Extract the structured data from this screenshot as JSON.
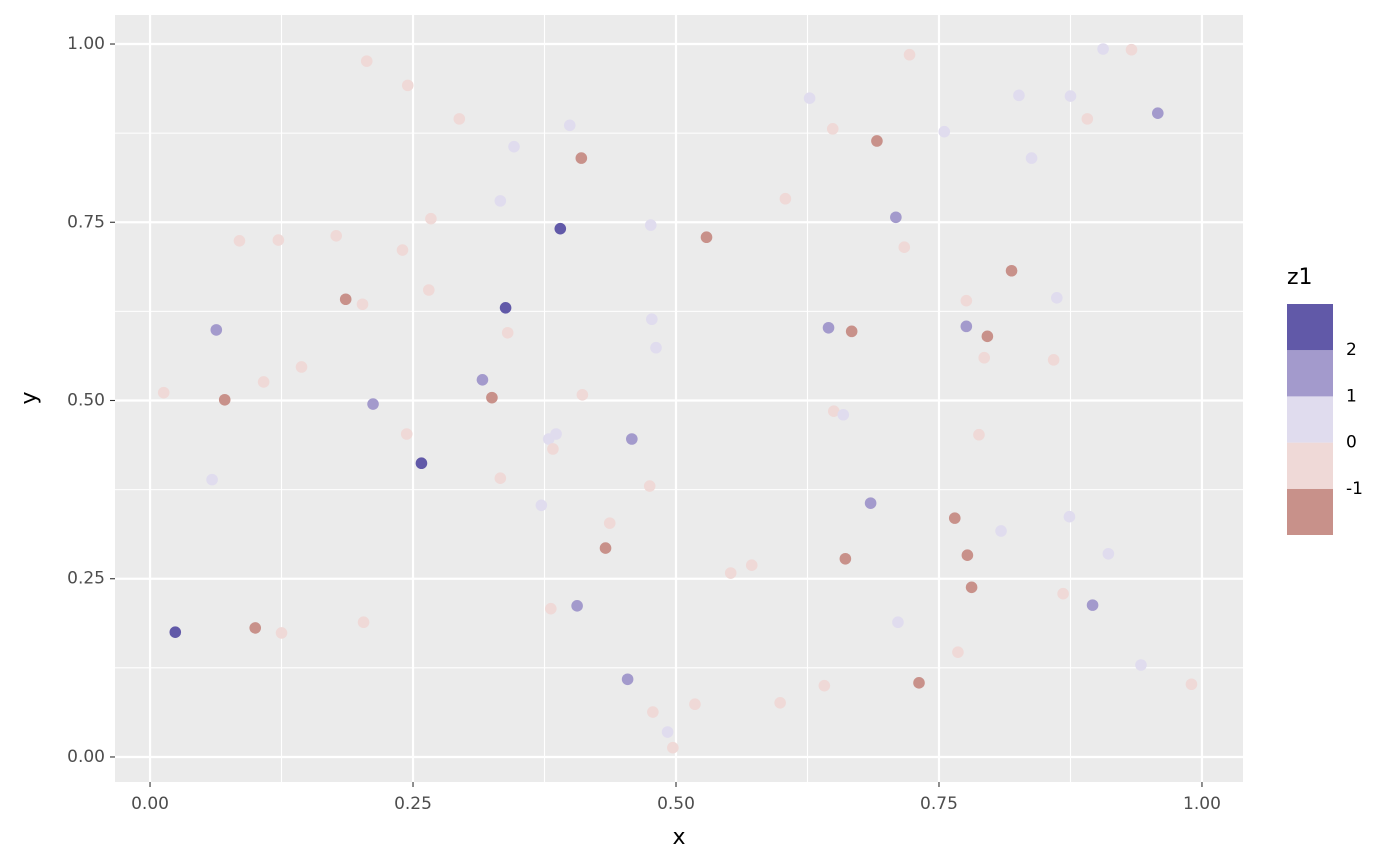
{
  "chart_data": {
    "type": "scatter",
    "x_label": "x",
    "y_label": "y",
    "legend_title": "z1",
    "x": [
      0.024,
      0.013,
      0.059,
      0.063,
      0.071,
      0.085,
      0.1,
      0.108,
      0.122,
      0.125,
      0.144,
      0.177,
      0.186,
      0.202,
      0.203,
      0.206,
      0.212,
      0.24,
      0.244,
      0.245,
      0.258,
      0.265,
      0.267,
      0.294,
      0.316,
      0.325,
      0.333,
      0.333,
      0.338,
      0.34,
      0.346,
      0.372,
      0.379,
      0.381,
      0.383,
      0.386,
      0.39,
      0.399,
      0.406,
      0.41,
      0.411,
      0.433,
      0.437,
      0.454,
      0.458,
      0.475,
      0.476,
      0.477,
      0.478,
      0.481,
      0.492,
      0.497,
      0.518,
      0.529,
      0.552,
      0.572,
      0.599,
      0.604,
      0.627,
      0.641,
      0.645,
      0.649,
      0.65,
      0.659,
      0.661,
      0.667,
      0.685,
      0.691,
      0.709,
      0.711,
      0.717,
      0.722,
      0.731,
      0.755,
      0.765,
      0.768,
      0.776,
      0.776,
      0.777,
      0.781,
      0.788,
      0.793,
      0.796,
      0.809,
      0.819,
      0.826,
      0.838,
      0.859,
      0.862,
      0.868,
      0.874,
      0.875,
      0.891,
      0.896,
      0.906,
      0.911,
      0.933,
      0.942,
      0.958,
      0.99
    ],
    "y": [
      0.175,
      0.511,
      0.389,
      0.599,
      0.501,
      0.724,
      0.181,
      0.526,
      0.725,
      0.174,
      0.547,
      0.731,
      0.642,
      0.635,
      0.189,
      0.976,
      0.495,
      0.711,
      0.453,
      0.942,
      0.412,
      0.655,
      0.755,
      0.895,
      0.529,
      0.504,
      0.78,
      0.391,
      0.63,
      0.595,
      0.856,
      0.353,
      0.446,
      0.208,
      0.432,
      0.453,
      0.741,
      0.886,
      0.212,
      0.84,
      0.508,
      0.293,
      0.328,
      0.109,
      0.446,
      0.38,
      0.746,
      0.614,
      0.063,
      0.574,
      0.035,
      0.013,
      0.074,
      0.729,
      0.258,
      0.269,
      0.076,
      0.783,
      0.924,
      0.1,
      0.602,
      0.881,
      0.485,
      0.48,
      0.278,
      0.597,
      0.356,
      0.864,
      0.757,
      0.189,
      0.715,
      0.985,
      0.104,
      0.877,
      0.335,
      0.147,
      0.604,
      0.64,
      0.283,
      0.238,
      0.452,
      0.56,
      0.59,
      0.317,
      0.682,
      0.928,
      0.84,
      0.557,
      0.644,
      0.229,
      0.337,
      0.927,
      0.895,
      0.213,
      0.993,
      0.285,
      0.992,
      0.129,
      0.903,
      0.102
    ],
    "z": [
      2.5,
      -0.5,
      0.5,
      1.5,
      -1.5,
      -0.5,
      -1.5,
      -0.5,
      -0.5,
      -0.5,
      -0.5,
      -0.5,
      -1.5,
      -0.5,
      -0.5,
      -0.5,
      1.5,
      -0.5,
      -0.5,
      -0.5,
      2.5,
      -0.5,
      -0.5,
      -0.5,
      1.5,
      -1.5,
      0.5,
      -0.5,
      2.5,
      -0.5,
      0.5,
      0.5,
      0.5,
      -0.5,
      -0.5,
      0.5,
      2.5,
      0.5,
      1.5,
      -1.5,
      -0.5,
      -1.5,
      -0.5,
      1.5,
      1.5,
      -0.5,
      0.5,
      0.5,
      -0.5,
      0.5,
      0.5,
      -0.5,
      -0.5,
      -1.5,
      -0.5,
      -0.5,
      -0.5,
      -0.5,
      0.5,
      -0.5,
      1.5,
      -0.5,
      -0.5,
      0.5,
      -1.5,
      -1.5,
      1.5,
      -1.5,
      1.5,
      0.5,
      -0.5,
      -0.5,
      -1.5,
      0.5,
      -1.5,
      -0.5,
      1.5,
      -0.5,
      -1.5,
      -1.5,
      -0.5,
      -0.5,
      -1.5,
      0.5,
      -1.5,
      0.5,
      0.5,
      -0.5,
      0.5,
      -0.5,
      0.5,
      0.5,
      -0.5,
      1.5,
      0.5,
      0.5,
      -0.5,
      0.5,
      1.5,
      -0.5
    ],
    "z_breaks": [
      -1,
      0,
      1,
      2
    ],
    "z_colors": [
      "#c8918a",
      "#efd9d7",
      "#e0dcee",
      "#a39acc",
      "#6159a8"
    ],
    "xlim": [
      -0.0333,
      1.039
    ],
    "ylim": [
      -0.0351,
      1.0407
    ],
    "xticks": [
      {
        "value": 0,
        "label": "0.00"
      },
      0.25,
      {
        "value": 0.5,
        "label": "0.50"
      },
      0.75,
      {
        "value": 1,
        "label": "1.00"
      }
    ],
    "yticks": [
      {
        "value": 0,
        "label": "0.00"
      },
      0.25,
      {
        "value": 0.5,
        "label": "0.50"
      },
      0.75,
      {
        "value": 1,
        "label": "1.00"
      }
    ],
    "grid": true
  }
}
